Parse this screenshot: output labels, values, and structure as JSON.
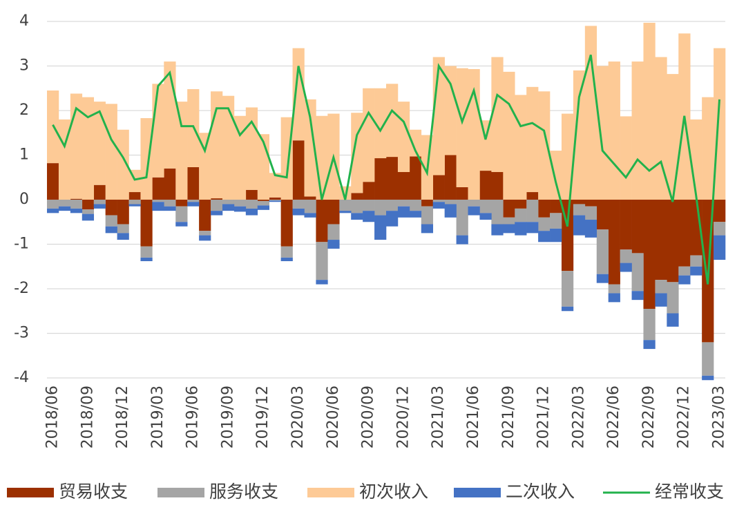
{
  "chart_data": {
    "type": "bar",
    "categories": [
      "2018/06",
      null,
      null,
      "2018/09",
      null,
      null,
      "2018/12",
      null,
      null,
      "2019/03",
      null,
      null,
      "2019/06",
      null,
      null,
      "2019/09",
      null,
      null,
      "2019/12",
      null,
      null,
      "2020/03",
      null,
      null,
      "2020/06",
      null,
      null,
      "2020/09",
      null,
      null,
      "2020/12",
      null,
      null,
      "2021/03",
      null,
      null,
      "2021/06",
      null,
      null,
      "2021/09",
      null,
      null,
      "2021/12",
      null,
      null,
      "2022/03",
      null,
      null,
      "2022/06",
      null,
      null,
      "2022/09",
      null,
      null,
      "2022/12",
      null,
      null,
      "2023/03"
    ],
    "series": [
      {
        "name": "贸易收支",
        "color": "#9c3000",
        "values": [
          0.82,
          0,
          0.02,
          -0.22,
          0.33,
          -0.35,
          -0.55,
          0.17,
          -1.05,
          0.5,
          0.7,
          -0.15,
          0.73,
          -0.7,
          0.03,
          0,
          0,
          0.22,
          -0.03,
          0.05,
          -1.05,
          1.33,
          0.07,
          -0.95,
          -0.55,
          0,
          0.15,
          0.4,
          0.93,
          0.96,
          0.62,
          0.97,
          -0.15,
          0.55,
          1.0,
          0.28,
          0,
          0.65,
          0.62,
          -0.4,
          -0.2,
          0.17,
          -0.4,
          -0.3,
          -1.6,
          -0.1,
          -0.15,
          -0.67,
          -1.9,
          -1.12,
          -1.2,
          -2.45,
          -1.8,
          -1.85,
          -1.5,
          -1.25,
          -3.2,
          -0.5
        ]
      },
      {
        "name": "服务收支",
        "color": "#a5a5a5",
        "values": [
          -0.2,
          -0.15,
          -0.2,
          -0.1,
          -0.1,
          -0.25,
          -0.2,
          -0.1,
          -0.25,
          -0.05,
          -0.15,
          -0.35,
          -0.05,
          -0.1,
          -0.25,
          -0.1,
          -0.15,
          -0.2,
          -0.1,
          -0.02,
          -0.25,
          -0.2,
          -0.3,
          -0.85,
          -0.35,
          -0.25,
          -0.3,
          -0.25,
          -0.35,
          -0.25,
          -0.15,
          -0.25,
          -0.4,
          -0.05,
          -0.1,
          -0.8,
          -0.15,
          -0.3,
          -0.55,
          -0.15,
          -0.3,
          -0.5,
          -0.3,
          -0.35,
          -0.8,
          -0.25,
          -0.3,
          -1.0,
          -0.2,
          -0.3,
          -0.85,
          -0.7,
          -0.3,
          -0.7,
          -0.2,
          -0.25,
          -0.75,
          -0.3
        ]
      },
      {
        "name": "初次收入",
        "color": "#fdca96",
        "values": [
          1.63,
          1.8,
          2.36,
          2.3,
          1.87,
          2.15,
          1.57,
          0.5,
          1.83,
          2.1,
          2.4,
          2.2,
          1.75,
          1.5,
          2.4,
          2.33,
          1.88,
          1.85,
          1.47,
          0.55,
          1.85,
          2.07,
          2.18,
          1.88,
          1.93,
          0.3,
          1.8,
          2.1,
          1.57,
          1.64,
          1.58,
          0.6,
          1.45,
          2.65,
          2.0,
          2.67,
          2.93,
          1.13,
          2.58,
          2.87,
          2.35,
          2.36,
          2.43,
          1.1,
          1.93,
          2.9,
          3.9,
          3.0,
          3.1,
          1.87,
          3.1,
          3.97,
          3.2,
          2.82,
          3.73,
          1.8,
          2.3,
          3.4
        ]
      },
      {
        "name": "二次收入",
        "color": "#4472c4",
        "values": [
          -0.1,
          -0.1,
          -0.1,
          -0.15,
          -0.1,
          -0.15,
          -0.15,
          -0.05,
          -0.08,
          -0.2,
          -0.1,
          -0.1,
          -0.1,
          -0.12,
          -0.1,
          -0.15,
          -0.12,
          -0.15,
          -0.1,
          -0.03,
          -0.08,
          -0.15,
          -0.1,
          -0.1,
          -0.2,
          -0.05,
          -0.15,
          -0.25,
          -0.55,
          -0.35,
          -0.25,
          -0.15,
          -0.2,
          -0.15,
          -0.3,
          -0.2,
          -0.2,
          -0.15,
          -0.25,
          -0.2,
          -0.3,
          -0.25,
          -0.25,
          -0.3,
          -0.1,
          -0.45,
          -0.4,
          -0.2,
          -0.2,
          -0.2,
          -0.2,
          -0.2,
          -0.3,
          -0.3,
          -0.2,
          -0.2,
          -0.1,
          -0.55
        ]
      },
      {
        "name": "经常收支",
        "color": "#22b24c",
        "type": "line",
        "values": [
          1.68,
          1.2,
          2.05,
          1.85,
          1.98,
          1.35,
          0.95,
          0.45,
          0.5,
          2.55,
          2.85,
          1.65,
          1.65,
          1.1,
          2.05,
          2.05,
          1.45,
          1.75,
          1.3,
          0.55,
          0.5,
          3.0,
          1.85,
          0.0,
          0.95,
          0.0,
          1.45,
          1.95,
          1.55,
          2.0,
          1.75,
          1.1,
          0.6,
          3.0,
          2.6,
          1.75,
          2.45,
          1.35,
          2.35,
          2.15,
          1.65,
          1.72,
          1.55,
          0.4,
          -0.6,
          2.3,
          3.25,
          1.1,
          0.8,
          0.5,
          0.9,
          0.65,
          0.85,
          -0.05,
          1.88,
          0.1,
          -1.9,
          2.25
        ]
      }
    ],
    "stacked": true,
    "ylim": [
      -4,
      4
    ],
    "yticks": [
      -4,
      -3,
      -2,
      -1,
      0,
      1,
      2,
      3,
      4
    ],
    "grid": true,
    "legend": "bottom"
  }
}
